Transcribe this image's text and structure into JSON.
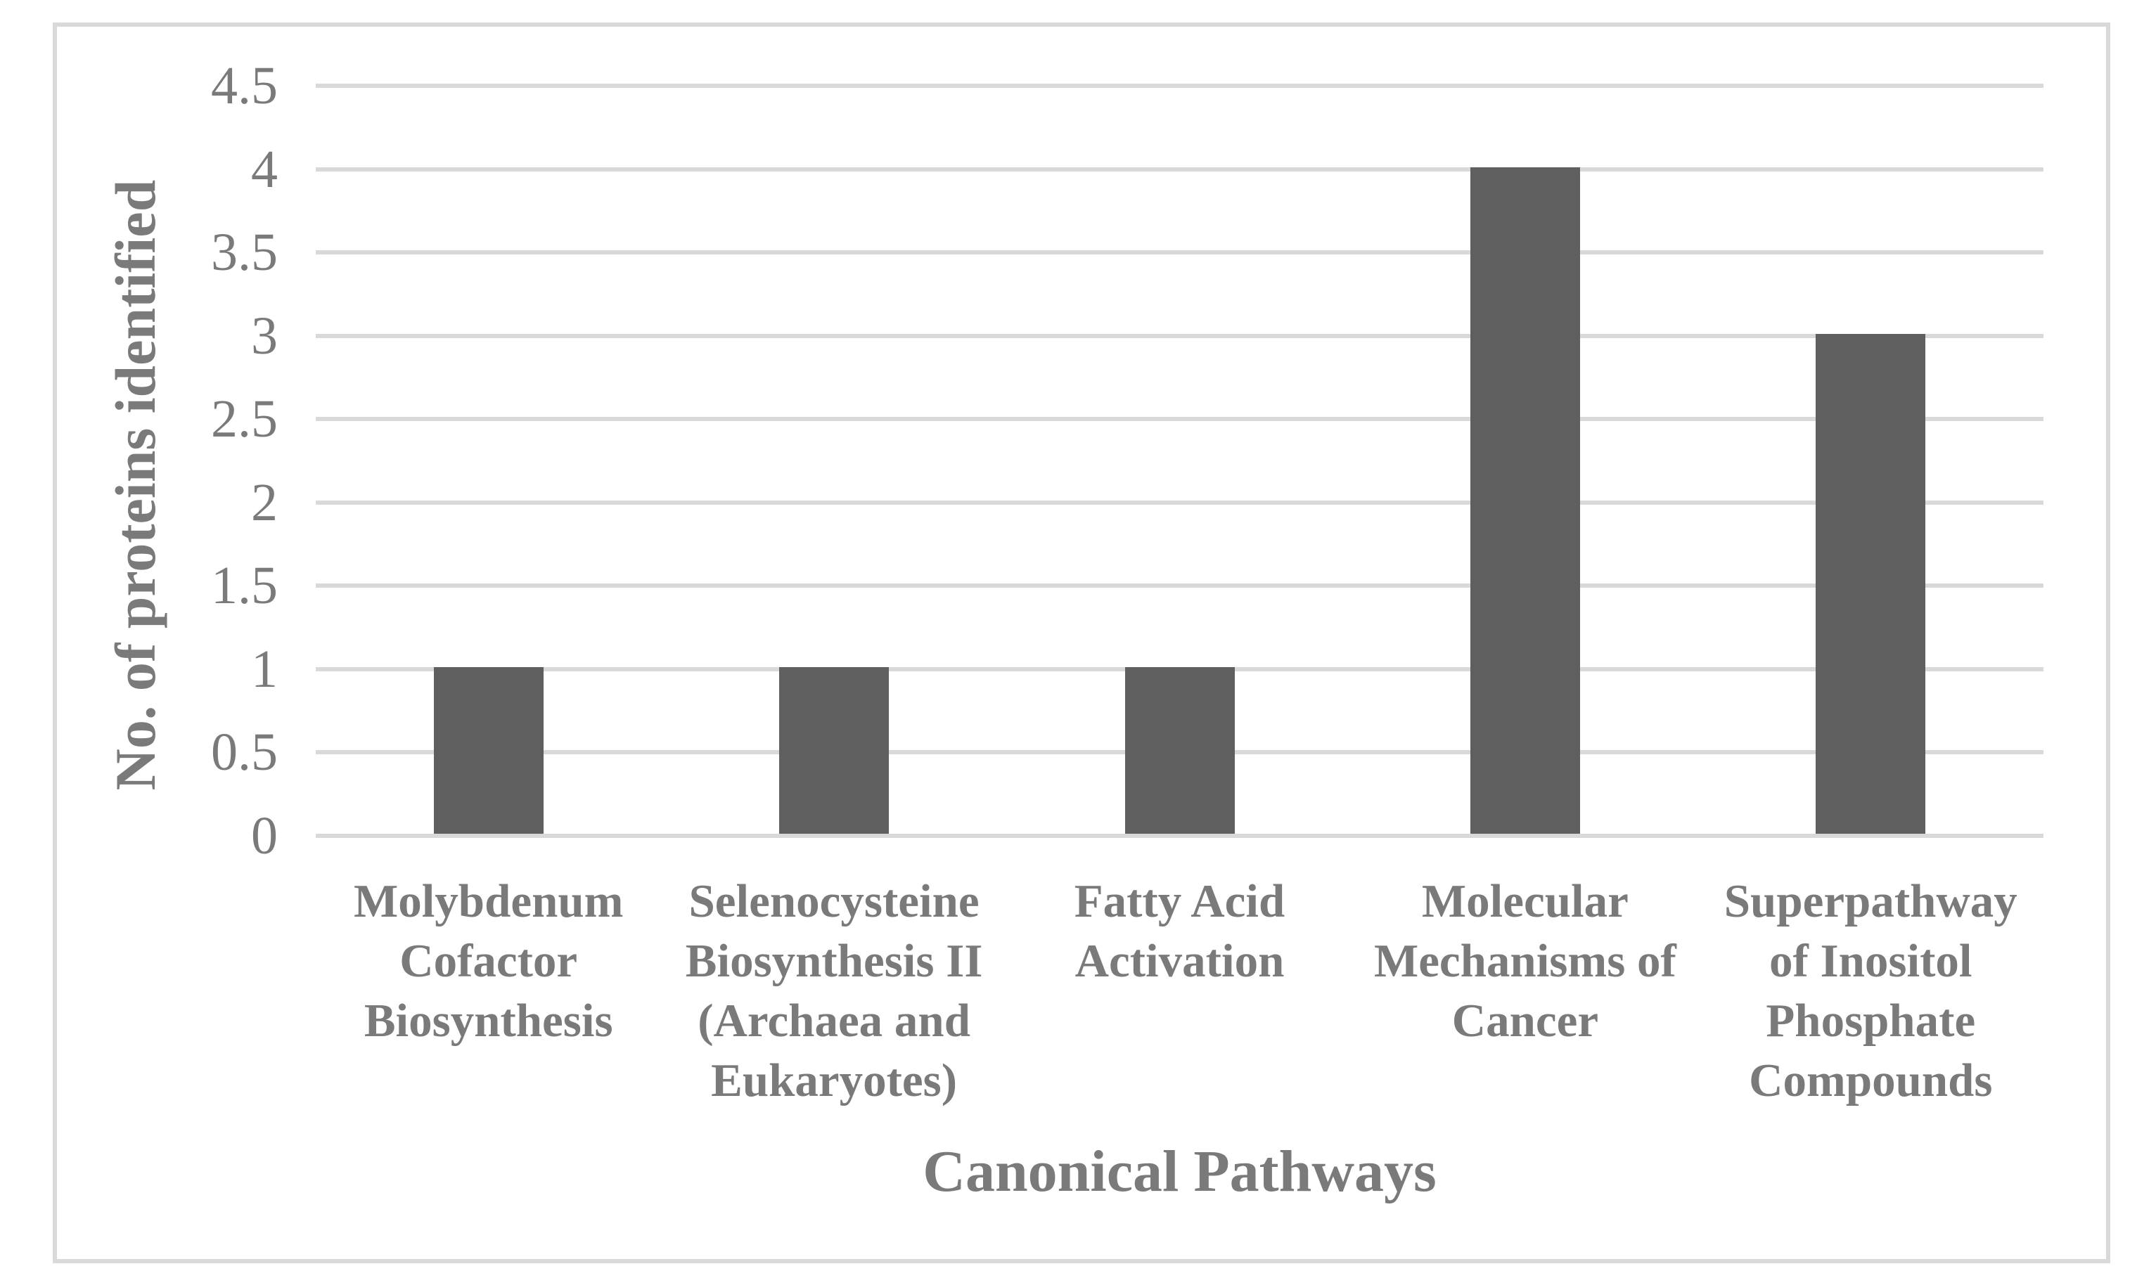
{
  "chart_data": {
    "type": "bar",
    "title": "",
    "xlabel": "Canonical Pathways",
    "ylabel": "No. of proteins identified",
    "categories": [
      "Molybdenum Cofactor Biosynthesis",
      "Selenocysteine Biosynthesis II (Archaea and Eukaryotes)",
      "Fatty Acid Activation",
      "Molecular Mechanisms of Cancer",
      "Superpathway of Inositol Phosphate Compounds"
    ],
    "category_lines": [
      [
        "Molybdenum",
        "Cofactor",
        "Biosynthesis"
      ],
      [
        "Selenocysteine",
        "Biosynthesis II",
        "(Archaea and",
        "Eukaryotes)"
      ],
      [
        "Fatty Acid",
        "Activation"
      ],
      [
        "Molecular",
        "Mechanisms of",
        "Cancer"
      ],
      [
        "Superpathway",
        "of Inositol",
        "Phosphate",
        "Compounds"
      ]
    ],
    "values": [
      1,
      1,
      1,
      4,
      3
    ],
    "ylim": [
      0,
      4.5
    ],
    "ytick_step": 0.5,
    "yticks": [
      "0",
      "0.5",
      "1",
      "1.5",
      "2",
      "2.5",
      "3",
      "3.5",
      "4",
      "4.5"
    ],
    "grid": true,
    "legend": "none",
    "colors": {
      "bar": "#5F5F5F",
      "gridline": "#D9D9D9",
      "frame_border": "#D9D9D9",
      "text": "#7A7A7A",
      "background": "#FFFFFF"
    }
  }
}
